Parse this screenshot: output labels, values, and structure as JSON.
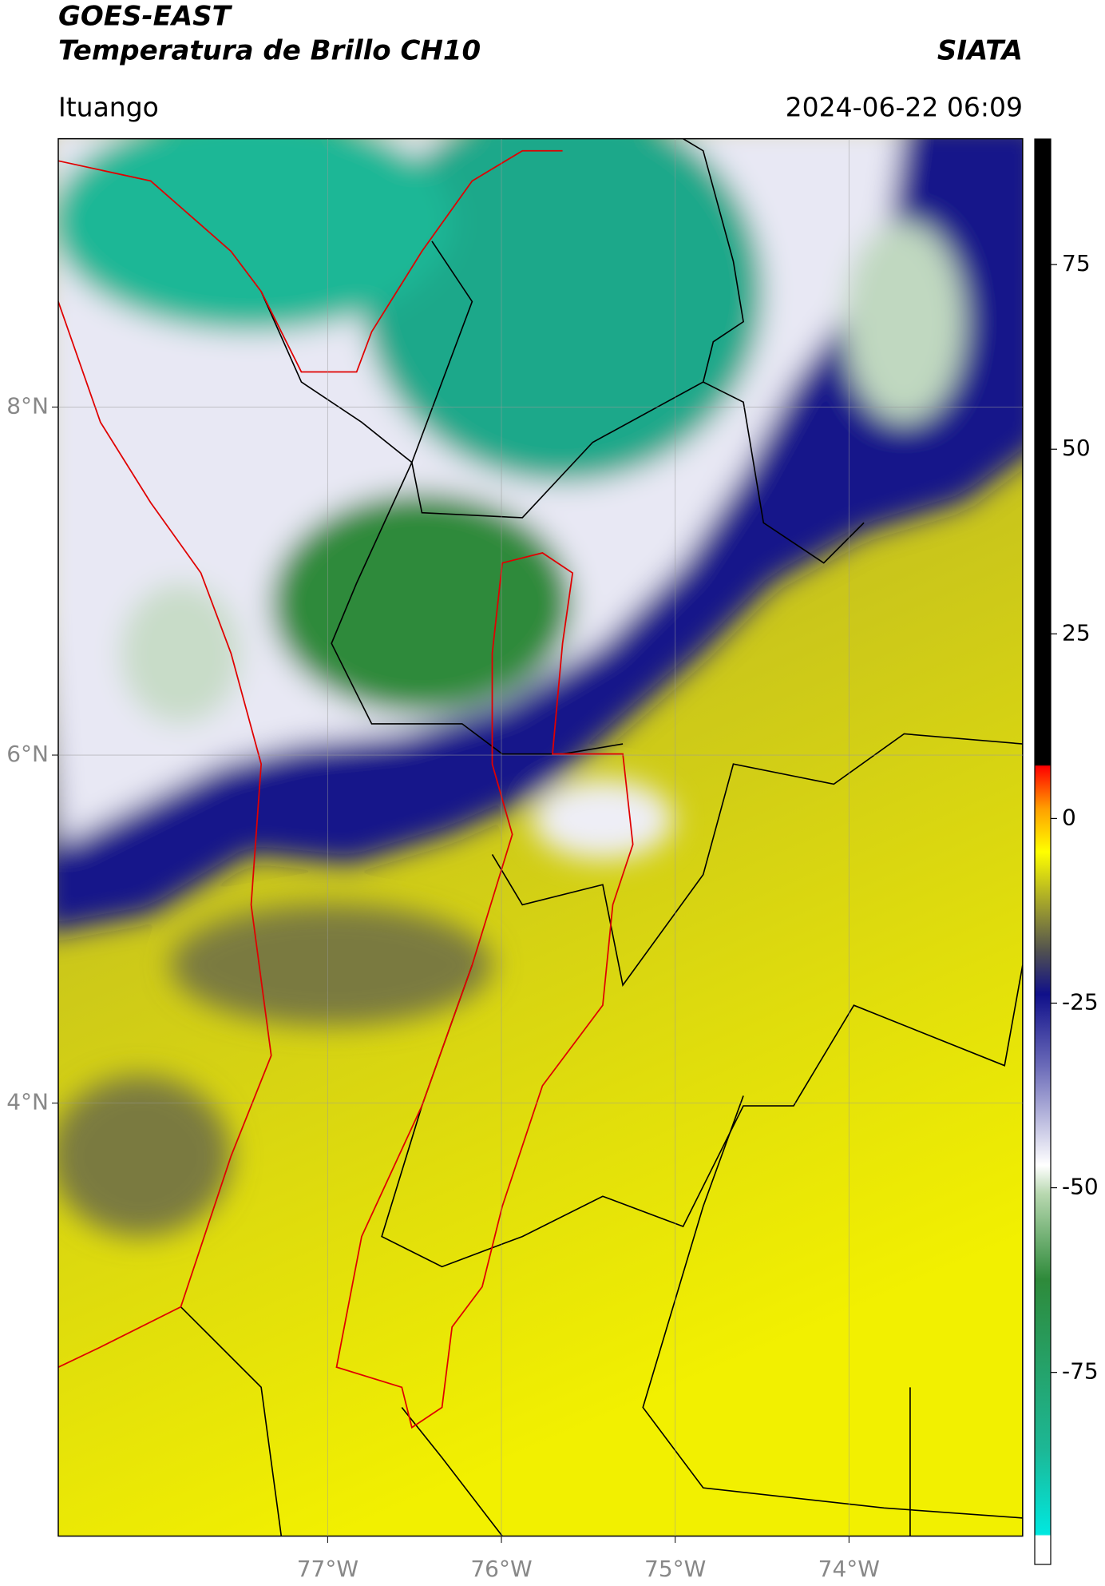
{
  "header": {
    "title": "GOES-EAST",
    "subtitle": "Temperatura de Brillo CH10",
    "brand": "SIATA",
    "location": "Ituango",
    "datetime": "2024-06-22 06:09"
  },
  "map": {
    "lonlim": [
      -78.55,
      -73.0
    ],
    "latlim": [
      1.51,
      9.54
    ],
    "lat_ticks": [
      {
        "value": 8,
        "label": "8°N"
      },
      {
        "value": 6,
        "label": "6°N"
      },
      {
        "value": 4,
        "label": "4°N"
      }
    ],
    "lon_ticks": [
      {
        "value": -77,
        "label": "77°W"
      },
      {
        "value": -76,
        "label": "76°W"
      },
      {
        "value": -75,
        "label": "75°W"
      },
      {
        "value": -74,
        "label": "74°W"
      }
    ]
  },
  "colorbar": {
    "lim": [
      -101,
      92
    ],
    "ticks": [
      75,
      50,
      25,
      0,
      -25,
      -50,
      -75
    ]
  }
}
